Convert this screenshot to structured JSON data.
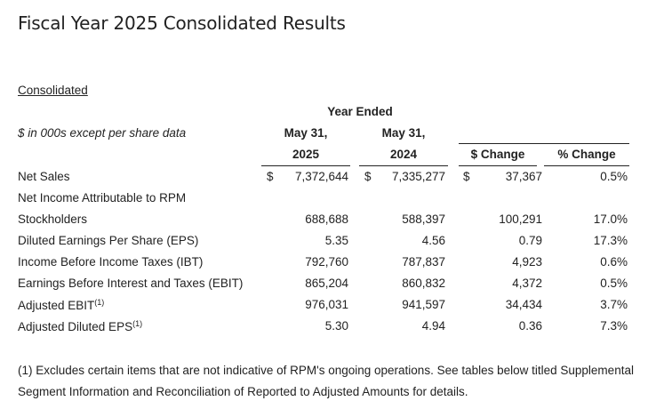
{
  "title": "Fiscal Year 2025 Consolidated Results",
  "section_label": "Consolidated",
  "units_note": "$ in 000s except per share data",
  "header": {
    "year_ended": "Year Ended",
    "col_2025_line1": "May 31,",
    "col_2025_line2": "2025",
    "col_2024_line1": "May 31,",
    "col_2024_line2": "2024",
    "col_change": "$ Change",
    "col_pct_change": "% Change"
  },
  "rows": [
    {
      "label": "Net Sales",
      "sup": "",
      "v2025": "7,372,644",
      "v2024": "7,335,277",
      "change": "37,367",
      "pct": "0.5%",
      "dollar_2025": "$",
      "dollar_2024": "$",
      "dollar_change": "$"
    },
    {
      "label": "Net Income Attributable to RPM",
      "sup": "",
      "v2025": "",
      "v2024": "",
      "change": "",
      "pct": ""
    },
    {
      "label": "Stockholders",
      "sup": "",
      "v2025": "688,688",
      "v2024": "588,397",
      "change": "100,291",
      "pct": "17.0%"
    },
    {
      "label": "Diluted Earnings Per Share (EPS)",
      "sup": "",
      "v2025": "5.35",
      "v2024": "4.56",
      "change": "0.79",
      "pct": "17.3%"
    },
    {
      "label": "Income Before Income Taxes (IBT)",
      "sup": "",
      "v2025": "792,760",
      "v2024": "787,837",
      "change": "4,923",
      "pct": "0.6%"
    },
    {
      "label": "Earnings Before Interest and Taxes (EBIT)",
      "sup": "",
      "v2025": "865,204",
      "v2024": "860,832",
      "change": "4,372",
      "pct": "0.5%"
    },
    {
      "label": "Adjusted EBIT",
      "sup": "(1)",
      "v2025": "976,031",
      "v2024": "941,597",
      "change": "34,434",
      "pct": "3.7%"
    },
    {
      "label": "Adjusted Diluted EPS",
      "sup": "(1)",
      "v2025": "5.30",
      "v2024": "4.94",
      "change": "0.36",
      "pct": "7.3%"
    }
  ],
  "footnote": "(1) Excludes certain items that are not indicative of RPM's ongoing operations. See tables below titled Supplemental Segment Information and Reconciliation of Reported to Adjusted Amounts for details."
}
